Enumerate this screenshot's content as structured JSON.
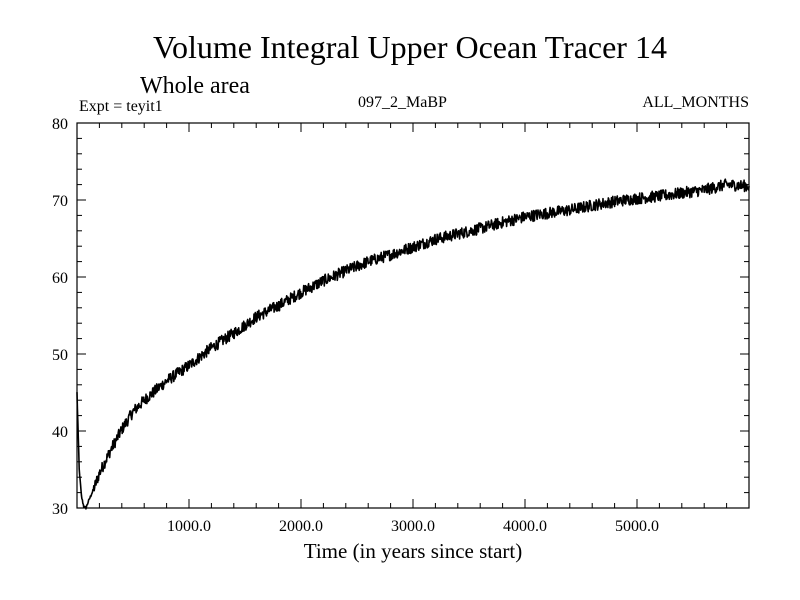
{
  "chart_data": {
    "type": "line",
    "title": "Volume Integral Upper Ocean Tracer 14",
    "subtitle": "Whole area",
    "experiment_label": "Expt = teyit1",
    "run_label": "097_2_MaBP",
    "months_label": "ALL_MONTHS",
    "xlabel": "Time (in years since start)",
    "ylabel": "",
    "xlim": [
      0,
      6000
    ],
    "ylim": [
      30,
      80
    ],
    "x_ticks": [
      1000,
      2000,
      3000,
      4000,
      5000
    ],
    "x_tick_labels": [
      "1000.0",
      "2000.0",
      "3000.0",
      "4000.0",
      "5000.0"
    ],
    "y_ticks": [
      30,
      40,
      50,
      60,
      70,
      80
    ],
    "y_tick_labels": [
      "30",
      "40",
      "50",
      "60",
      "70",
      "80"
    ],
    "grid": false,
    "series": [
      {
        "name": "Tracer 14",
        "x": [
          0,
          20,
          40,
          60,
          80,
          100,
          150,
          200,
          300,
          400,
          500,
          600,
          800,
          1000,
          1200,
          1400,
          1600,
          1800,
          2000,
          2200,
          2400,
          2600,
          2800,
          3000,
          3200,
          3400,
          3600,
          3800,
          4000,
          4200,
          4400,
          4600,
          4800,
          5000,
          5200,
          5400,
          5600,
          5800,
          6000
        ],
        "values": [
          45.0,
          35.0,
          31.5,
          30.2,
          30.0,
          30.8,
          32.5,
          34.5,
          37.5,
          40.2,
          42.5,
          44.0,
          46.5,
          48.5,
          50.8,
          52.7,
          54.8,
          56.3,
          58.0,
          59.5,
          60.8,
          62.0,
          62.9,
          63.9,
          64.9,
          65.6,
          66.3,
          67.1,
          67.8,
          68.3,
          68.7,
          69.3,
          69.8,
          70.2,
          70.5,
          70.9,
          71.3,
          72.0,
          71.8
        ]
      }
    ]
  }
}
